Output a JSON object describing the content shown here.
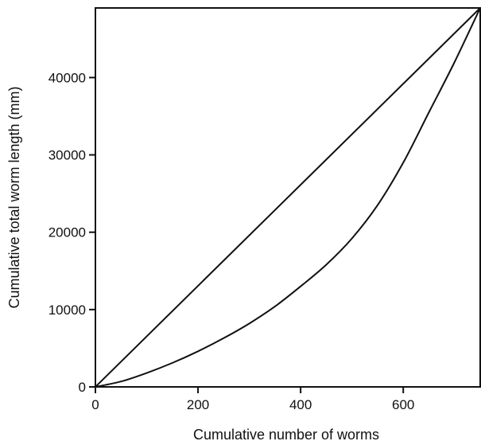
{
  "chart_data": {
    "type": "line",
    "title": "",
    "xlabel": "Cumulative number of worms",
    "ylabel": "Cumulative total worm length (mm)",
    "xlim": [
      0,
      750
    ],
    "ylim": [
      0,
      49000
    ],
    "x_ticks": [
      0,
      200,
      400,
      600
    ],
    "y_ticks": [
      0,
      10000,
      20000,
      30000,
      40000
    ],
    "grid": false,
    "legend": "none",
    "series": [
      {
        "x": [
          0,
          750
        ],
        "y": [
          0,
          49000
        ]
      },
      {
        "x": [
          0,
          50,
          100,
          150,
          200,
          250,
          300,
          350,
          400,
          450,
          500,
          550,
          600,
          650,
          700,
          750
        ],
        "y": [
          0,
          700,
          1800,
          3100,
          4600,
          6300,
          8200,
          10400,
          13000,
          15800,
          19200,
          23500,
          29000,
          35500,
          42000,
          49000
        ]
      }
    ]
  }
}
